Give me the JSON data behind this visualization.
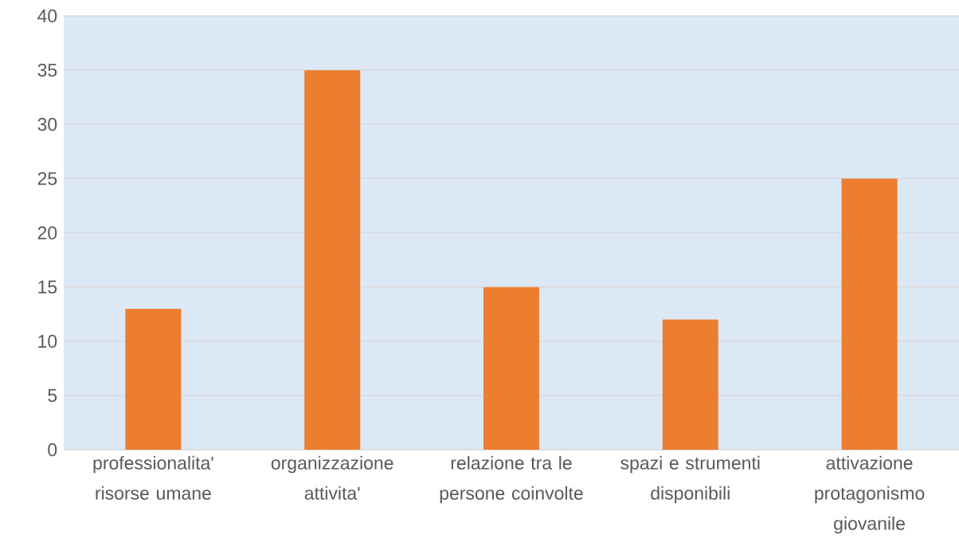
{
  "chart_data": {
    "type": "bar",
    "categories": [
      "professionalita' risorse umane",
      "organizzazione attivita'",
      "relazione tra le persone coinvolte",
      "spazi e strumenti disponibili",
      "attivazione protagonismo giovanile"
    ],
    "values": [
      13,
      35,
      15,
      12,
      25
    ],
    "color": "#ed7d31",
    "ylim": [
      0,
      40
    ],
    "yticks": [
      0,
      5,
      10,
      15,
      20,
      25,
      30,
      35,
      40
    ],
    "grid": "y"
  }
}
